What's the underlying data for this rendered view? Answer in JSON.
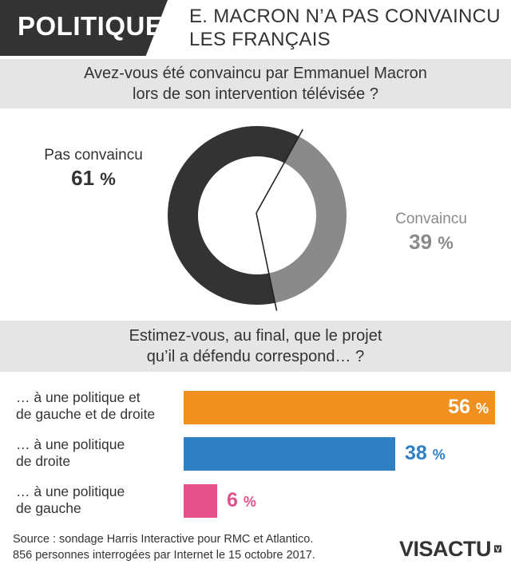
{
  "header": {
    "tag": "POLITIQUE",
    "headline_line1": "E. MACRON N’A PAS CONVAINCU",
    "headline_line2": "LES FRANÇAIS"
  },
  "question1": {
    "line1": "Avez-vous été convaincu par Emmanuel Macron",
    "line2": "lors de son intervention télévisée ?"
  },
  "question2": {
    "line1": "Estimez-vous, au final, que le projet",
    "line2": "qu’il a défendu correspond… ?"
  },
  "chart_data": [
    {
      "type": "pie",
      "style": "donut",
      "slices": [
        {
          "label": "Pas convaincu",
          "value": 61,
          "value_text": "61",
          "color": "#333333"
        },
        {
          "label": "Convaincu",
          "value": 39,
          "value_text": "39",
          "color": "#8a8a8a"
        }
      ],
      "unit": "%"
    },
    {
      "type": "bar",
      "orientation": "horizontal",
      "xlim": [
        0,
        56
      ],
      "unit": "%",
      "bars": [
        {
          "label_line1": "… à une politique et",
          "label_line2": "de gauche et de droite",
          "value": 56,
          "value_text": "56",
          "color": "#f0901e",
          "value_position": "inside"
        },
        {
          "label_line1": "… à une politique",
          "label_line2": "de droite",
          "value": 38,
          "value_text": "38",
          "color": "#2f7fc3",
          "value_position": "outside"
        },
        {
          "label_line1": "… à une politique",
          "label_line2": "de gauche",
          "value": 6,
          "value_text": "6",
          "color": "#e4508a",
          "value_position": "outside"
        }
      ]
    }
  ],
  "source": {
    "line1": "Source : sondage Harris Interactive pour RMC et Atlantico.",
    "line2": "856 personnes interrogées par Internet le 15 octobre 2017."
  },
  "logo": {
    "text": "VISACTU",
    "icon": "visactu-logo-icon"
  }
}
